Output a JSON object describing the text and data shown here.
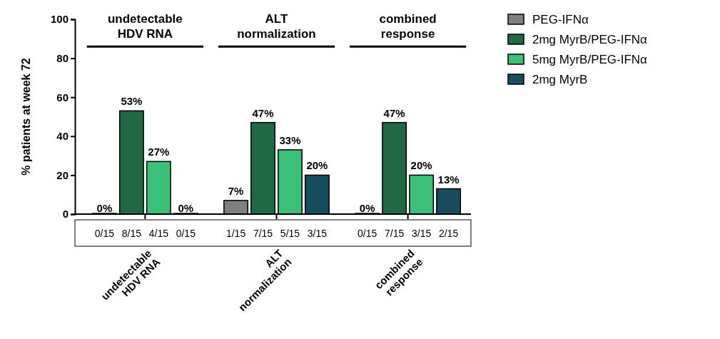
{
  "chart_data": {
    "type": "bar",
    "ylabel": "% patients at week 72",
    "categories": [
      "undetectable HDV RNA",
      "ALT normalization",
      "combined response"
    ],
    "series": [
      {
        "name": "PEG-IFNα",
        "color": "#7f7f7f",
        "values": [
          0,
          7,
          0
        ],
        "value_labels": [
          "0%",
          "7%",
          "0%"
        ]
      },
      {
        "name": "2mg MyrB/PEG-IFNα",
        "color": "#1f6a44",
        "values": [
          53,
          47,
          47
        ],
        "value_labels": [
          "53%",
          "47%",
          "47%"
        ]
      },
      {
        "name": "5mg MyrB/PEG-IFNα",
        "color": "#3cbf77",
        "values": [
          27,
          33,
          20
        ],
        "value_labels": [
          "27%",
          "33%",
          "20%"
        ]
      },
      {
        "name": "2mg MyrB",
        "color": "#184d60",
        "values": [
          0,
          20,
          13
        ],
        "value_labels": [
          "0%",
          "20%",
          "13%"
        ]
      }
    ],
    "ylim": [
      0,
      100
    ],
    "yticks": [
      0,
      20,
      40,
      60,
      80,
      100
    ],
    "legend": "top right",
    "annotations": [
      "undetectable HDV RNA",
      "ALT normalization",
      "combined response",
      "0/15",
      "8/15",
      "4/15",
      "0/15",
      "1/15",
      "7/15",
      "5/15",
      "3/15",
      "0/15",
      "7/15",
      "3/15",
      "2/15"
    ]
  }
}
